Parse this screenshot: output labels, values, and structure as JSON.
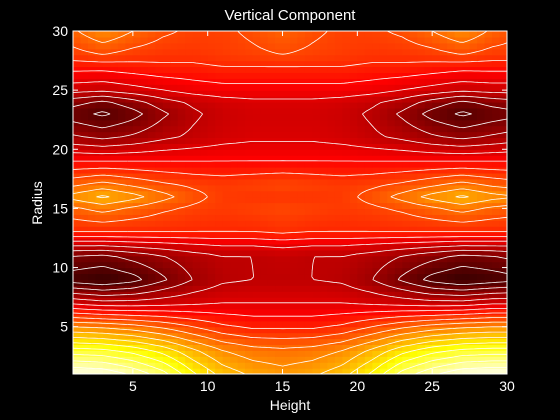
{
  "chart_data": {
    "type": "heatmap",
    "subtype": "filled-contour",
    "title": "Vertical Component",
    "xlabel": "Height",
    "ylabel": "Radius",
    "xlim": [
      1,
      30
    ],
    "ylim": [
      1,
      30
    ],
    "x_ticks": [
      5,
      10,
      15,
      20,
      25,
      30
    ],
    "y_ticks": [
      5,
      10,
      15,
      20,
      25,
      30
    ],
    "colormap": "hot",
    "contour_line_color": "#ffffff",
    "background": "#000000",
    "axes_color": "#ffffff",
    "grid": false,
    "legend": "none",
    "field": {
      "x": [
        1,
        3,
        5,
        7,
        9,
        11,
        13,
        15,
        17,
        19,
        21,
        23,
        25,
        27,
        29,
        30
      ],
      "y": [
        1,
        3,
        5,
        7,
        9,
        11,
        12,
        13,
        15,
        16,
        17,
        19,
        21,
        23,
        24,
        25,
        27,
        28,
        30
      ],
      "z": [
        [
          0.98,
          0.97,
          0.92,
          0.85,
          0.74,
          0.66,
          0.62,
          0.6,
          0.62,
          0.66,
          0.74,
          0.85,
          0.92,
          0.97,
          0.98,
          0.98
        ],
        [
          0.8,
          0.79,
          0.76,
          0.71,
          0.64,
          0.58,
          0.55,
          0.54,
          0.55,
          0.58,
          0.64,
          0.71,
          0.76,
          0.79,
          0.8,
          0.8
        ],
        [
          0.58,
          0.57,
          0.55,
          0.52,
          0.48,
          0.44,
          0.42,
          0.42,
          0.42,
          0.44,
          0.48,
          0.52,
          0.55,
          0.57,
          0.58,
          0.58
        ],
        [
          0.32,
          0.3,
          0.3,
          0.31,
          0.32,
          0.33,
          0.33,
          0.33,
          0.33,
          0.33,
          0.32,
          0.31,
          0.3,
          0.3,
          0.32,
          0.32
        ],
        [
          0.1,
          0.08,
          0.11,
          0.17,
          0.23,
          0.27,
          0.28,
          0.28,
          0.28,
          0.27,
          0.23,
          0.17,
          0.11,
          0.08,
          0.1,
          0.11
        ],
        [
          0.18,
          0.17,
          0.2,
          0.23,
          0.26,
          0.28,
          0.28,
          0.29,
          0.28,
          0.28,
          0.26,
          0.23,
          0.2,
          0.17,
          0.18,
          0.19
        ],
        [
          0.3,
          0.3,
          0.31,
          0.32,
          0.33,
          0.34,
          0.34,
          0.35,
          0.34,
          0.34,
          0.33,
          0.32,
          0.31,
          0.3,
          0.3,
          0.3
        ],
        [
          0.43,
          0.43,
          0.43,
          0.43,
          0.43,
          0.43,
          0.43,
          0.44,
          0.43,
          0.43,
          0.43,
          0.43,
          0.43,
          0.43,
          0.43,
          0.43
        ],
        [
          0.52,
          0.55,
          0.52,
          0.49,
          0.47,
          0.46,
          0.47,
          0.48,
          0.47,
          0.46,
          0.47,
          0.49,
          0.52,
          0.55,
          0.52,
          0.51
        ],
        [
          0.6,
          0.64,
          0.6,
          0.55,
          0.5,
          0.46,
          0.45,
          0.45,
          0.45,
          0.46,
          0.5,
          0.55,
          0.6,
          0.64,
          0.6,
          0.59
        ],
        [
          0.52,
          0.55,
          0.52,
          0.49,
          0.47,
          0.46,
          0.47,
          0.48,
          0.47,
          0.46,
          0.47,
          0.49,
          0.52,
          0.55,
          0.52,
          0.51
        ],
        [
          0.38,
          0.38,
          0.38,
          0.38,
          0.38,
          0.38,
          0.38,
          0.38,
          0.38,
          0.38,
          0.38,
          0.38,
          0.38,
          0.38,
          0.38,
          0.38
        ],
        [
          0.24,
          0.22,
          0.24,
          0.27,
          0.29,
          0.31,
          0.32,
          0.32,
          0.32,
          0.31,
          0.29,
          0.27,
          0.24,
          0.22,
          0.24,
          0.25
        ],
        [
          0.15,
          0.12,
          0.16,
          0.22,
          0.27,
          0.3,
          0.31,
          0.31,
          0.31,
          0.3,
          0.27,
          0.22,
          0.16,
          0.12,
          0.15,
          0.16
        ],
        [
          0.2,
          0.17,
          0.21,
          0.26,
          0.29,
          0.31,
          0.32,
          0.32,
          0.32,
          0.31,
          0.29,
          0.26,
          0.21,
          0.17,
          0.2,
          0.21
        ],
        [
          0.3,
          0.29,
          0.31,
          0.33,
          0.35,
          0.36,
          0.36,
          0.36,
          0.36,
          0.36,
          0.35,
          0.33,
          0.31,
          0.29,
          0.3,
          0.3
        ],
        [
          0.4,
          0.4,
          0.41,
          0.42,
          0.42,
          0.43,
          0.43,
          0.43,
          0.43,
          0.43,
          0.42,
          0.42,
          0.41,
          0.4,
          0.4,
          0.4
        ],
        [
          0.46,
          0.48,
          0.46,
          0.45,
          0.45,
          0.46,
          0.47,
          0.48,
          0.47,
          0.46,
          0.45,
          0.45,
          0.46,
          0.48,
          0.46,
          0.46
        ],
        [
          0.52,
          0.58,
          0.53,
          0.49,
          0.47,
          0.47,
          0.49,
          0.52,
          0.49,
          0.47,
          0.47,
          0.49,
          0.53,
          0.58,
          0.52,
          0.5
        ]
      ],
      "contour_levels": [
        0.08,
        0.13,
        0.18,
        0.23,
        0.28,
        0.33,
        0.38,
        0.43,
        0.48,
        0.53,
        0.58,
        0.63,
        0.68,
        0.73,
        0.78,
        0.83,
        0.88,
        0.93
      ],
      "value_range": [
        0,
        1
      ]
    }
  }
}
